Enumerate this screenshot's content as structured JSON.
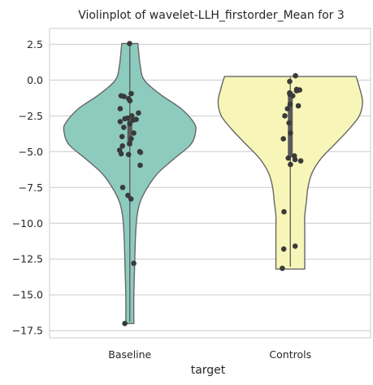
{
  "chart_data": {
    "type": "violin",
    "title": "Violinplot of wavelet-LLH_firstorder_Mean for 3",
    "xlabel": "target",
    "ylabel": "",
    "categories": [
      "Baseline",
      "Controls"
    ],
    "ylim": [
      -18.0,
      3.6
    ],
    "yticks": [
      2.5,
      0.0,
      -2.5,
      -5.0,
      -7.5,
      -10.0,
      -12.5,
      -15.0,
      -17.5
    ],
    "ytick_labels": [
      "2.5",
      "0.0",
      "−2.5",
      "−5.0",
      "−7.5",
      "−10.0",
      "−12.5",
      "−15.0",
      "−17.5"
    ],
    "grid": true,
    "colors": {
      "Baseline": "#8dcbbf",
      "Controls": "#f7f6b8",
      "outline": "#666666",
      "points": "#3a3a3a",
      "grid": "#cccccc",
      "frame": "#cccccc"
    },
    "series": [
      {
        "category": "Baseline",
        "points": [
          2.55,
          -0.95,
          -1.1,
          -1.15,
          -1.3,
          -1.45,
          -2.0,
          -2.3,
          -2.5,
          -2.65,
          -2.7,
          -2.75,
          -2.8,
          -2.9,
          -3.05,
          -3.3,
          -3.7,
          -3.95,
          -4.1,
          -4.45,
          -4.6,
          -4.9,
          -5.0,
          -5.05,
          -5.15,
          -5.2,
          -5.95,
          -7.5,
          -8.05,
          -8.3,
          -12.8,
          -17.0
        ],
        "quartiles": [
          -4.6,
          -2.7
        ],
        "density_profile": [
          [
            2.55,
            0.1
          ],
          [
            2.0,
            0.11
          ],
          [
            1.0,
            0.13
          ],
          [
            0.0,
            0.18
          ],
          [
            -1.0,
            0.38
          ],
          [
            -2.0,
            0.64
          ],
          [
            -3.0,
            0.8
          ],
          [
            -3.6,
            0.82
          ],
          [
            -4.5,
            0.76
          ],
          [
            -5.5,
            0.55
          ],
          [
            -6.5,
            0.35
          ],
          [
            -7.5,
            0.22
          ],
          [
            -8.5,
            0.13
          ],
          [
            -9.5,
            0.09
          ],
          [
            -11.0,
            0.07
          ],
          [
            -13.0,
            0.06
          ],
          [
            -15.0,
            0.05
          ],
          [
            -17.0,
            0.05
          ]
        ]
      },
      {
        "category": "Controls",
        "points": [
          0.3,
          -0.1,
          -0.65,
          -0.7,
          -0.75,
          -0.9,
          -1.0,
          -1.1,
          -1.7,
          -1.8,
          -2.0,
          -2.5,
          -3.0,
          -3.7,
          -4.1,
          -5.3,
          -5.45,
          -5.55,
          -5.65,
          -5.9,
          -9.2,
          -11.6,
          -11.8,
          -13.15
        ],
        "quartiles": [
          -5.4,
          -0.8
        ],
        "density_profile": [
          [
            0.25,
            0.82
          ],
          [
            -0.5,
            0.86
          ],
          [
            -1.5,
            0.9
          ],
          [
            -2.5,
            0.86
          ],
          [
            -3.5,
            0.72
          ],
          [
            -4.5,
            0.55
          ],
          [
            -5.5,
            0.38
          ],
          [
            -6.5,
            0.27
          ],
          [
            -7.5,
            0.22
          ],
          [
            -8.5,
            0.2
          ],
          [
            -9.5,
            0.18
          ],
          [
            -10.5,
            0.18
          ],
          [
            -11.5,
            0.18
          ],
          [
            -12.5,
            0.18
          ],
          [
            -13.2,
            0.18
          ]
        ]
      }
    ]
  }
}
